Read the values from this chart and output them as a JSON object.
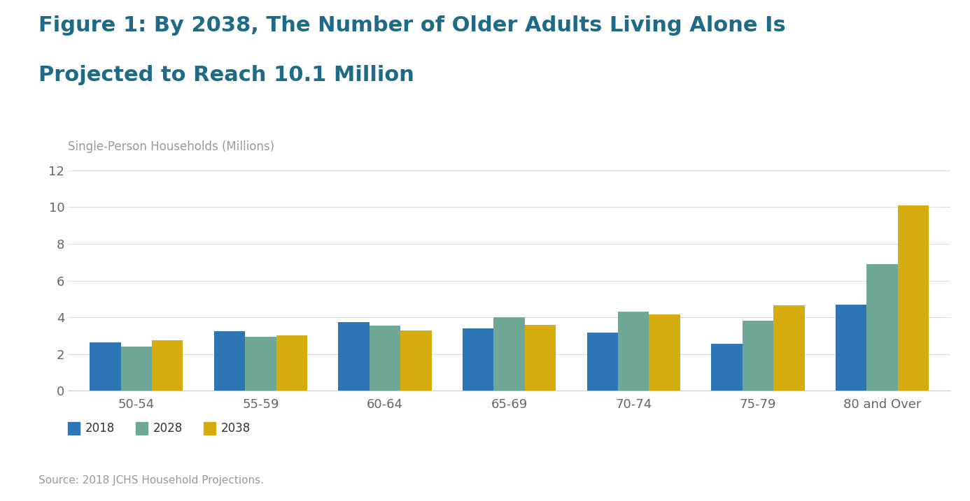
{
  "title_line1": "Figure 1: By 2038, The Number of Older Adults Living Alone Is",
  "title_line2": "Projected to Reach 10.1 Million",
  "ylabel": "Single-Person Households (Millions)",
  "source": "Source: 2018 JCHS Household Projections.",
  "categories": [
    "50-54",
    "55-59",
    "60-64",
    "65-69",
    "70-74",
    "75-79",
    "80 and Over"
  ],
  "series": {
    "2018": [
      2.65,
      3.25,
      3.75,
      3.4,
      3.15,
      2.55,
      4.7
    ],
    "2028": [
      2.4,
      2.95,
      3.55,
      4.0,
      4.3,
      3.8,
      6.9
    ],
    "2038": [
      2.75,
      3.0,
      3.3,
      3.6,
      4.15,
      4.65,
      10.1
    ]
  },
  "colors": {
    "2018": "#2E75B6",
    "2028": "#70A897",
    "2038": "#D4AC0D"
  },
  "ylim": [
    0,
    12
  ],
  "yticks": [
    0,
    2,
    4,
    6,
    8,
    10,
    12
  ],
  "background_color": "#FFFFFF",
  "title_color": "#1F6B87",
  "ylabel_color": "#999999",
  "source_color": "#999999",
  "title_fontsize": 22,
  "ylabel_fontsize": 12,
  "tick_fontsize": 13,
  "legend_fontsize": 12,
  "source_fontsize": 11,
  "bar_width": 0.25
}
